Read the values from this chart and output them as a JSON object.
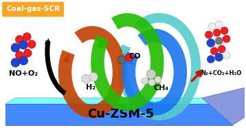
{
  "title": "Coal-gas-SCR",
  "title_bg": "#F5A623",
  "title_color": "white",
  "catalyst": "Cu-ZSM-5",
  "catalyst_color": "black",
  "catalyst_top": "#7FFFFF",
  "catalyst_front": "#4488FF",
  "catalyst_side": "#8899DD",
  "reactant_label": "NO+O₂",
  "product_label": "N₂+CO₂+H₂O",
  "reductant_labels": [
    "H₂",
    "CO",
    "CH₄"
  ],
  "c_h2": "#C04000",
  "c_co_outer": "#22BB00",
  "c_co_inner": "#1A77EE",
  "c_ch4": "#1A77EE",
  "c_cyan": "#55CCCC",
  "bg_color": "white",
  "black_arrow": "black",
  "red_arrow": "#CC1111"
}
